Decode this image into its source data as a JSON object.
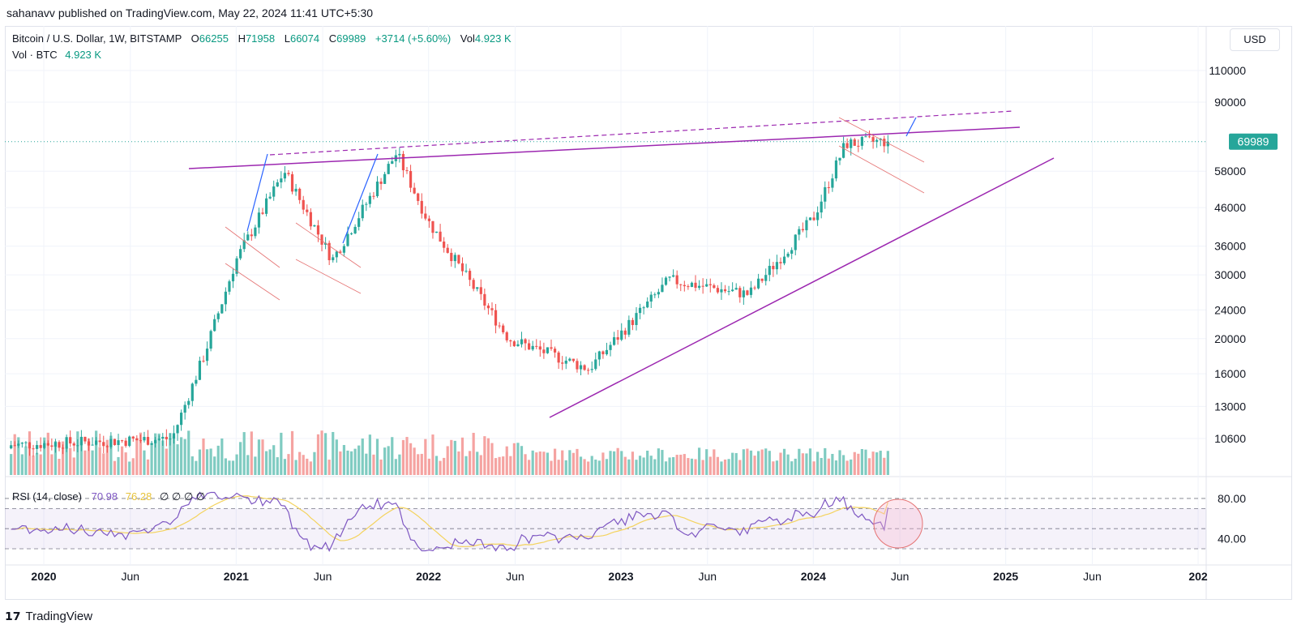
{
  "publisher_line": "sahanavv published on TradingView.com, May 22, 2024 11:41 UTC+5:30",
  "legend": {
    "symbol": "Bitcoin / U.S. Dollar, 1W, BITSTAMP",
    "o_label": "O",
    "o_value": "66255",
    "h_label": "H",
    "h_value": "71958",
    "l_label": "L",
    "l_value": "66074",
    "c_label": "C",
    "c_value": "69989",
    "change": "+3714 (+5.60%)",
    "vol_label": "Vol",
    "vol_value": "4.923 K",
    "vol_line_label": "Vol · BTC",
    "vol_line_value": "4.923 K"
  },
  "rsi_legend": {
    "label": "RSI (14, close)",
    "rsi": "70.98",
    "ma": "76.28",
    "icons": "∅ ∅ ∅ ∅"
  },
  "currency": "USD",
  "footer": {
    "brand": "TradingView"
  },
  "colors": {
    "up": "#26a69a",
    "down": "#ef5350",
    "vol_up": "#7fcbc1",
    "vol_down": "#f5a3a1",
    "trend": "#9c27b0",
    "rsi_line": "#7e57c2",
    "rsi_ma": "#f4d35e",
    "price_tag": "#26a69a"
  },
  "chart_data": {
    "type": "candlestick",
    "title": "Bitcoin / U.S. Dollar, 1W, BITSTAMP",
    "y_scale": "log",
    "y_ticks": [
      10600,
      13000,
      16000,
      20000,
      24000,
      30000,
      36000,
      46000,
      58000,
      90000,
      110000
    ],
    "last_price": 69989,
    "x_ticks": [
      {
        "label": "2020",
        "year": true
      },
      {
        "label": "Jun",
        "year": false
      },
      {
        "label": "2021",
        "year": true
      },
      {
        "label": "Jun",
        "year": false
      },
      {
        "label": "2022",
        "year": true
      },
      {
        "label": "Jun",
        "year": false
      },
      {
        "label": "2023",
        "year": true
      },
      {
        "label": "Jun",
        "year": false
      },
      {
        "label": "2024",
        "year": true
      },
      {
        "label": "Jun",
        "year": false
      },
      {
        "label": "2025",
        "year": true
      },
      {
        "label": "Jun",
        "year": false
      },
      {
        "label": "202",
        "year": true
      }
    ],
    "series_close": [
      {
        "date": "2020-09",
        "close": 10600
      },
      {
        "date": "2020-11",
        "close": 18000
      },
      {
        "date": "2021-01",
        "close": 33000
      },
      {
        "date": "2021-04",
        "close": 58000
      },
      {
        "date": "2021-07",
        "close": 33000
      },
      {
        "date": "2021-11",
        "close": 65000
      },
      {
        "date": "2022-01",
        "close": 42000
      },
      {
        "date": "2022-06",
        "close": 20000
      },
      {
        "date": "2022-11",
        "close": 16500
      },
      {
        "date": "2023-04",
        "close": 29000
      },
      {
        "date": "2023-09",
        "close": 26500
      },
      {
        "date": "2024-01",
        "close": 43000
      },
      {
        "date": "2024-03",
        "close": 69000
      },
      {
        "date": "2024-05",
        "close": 69989
      }
    ],
    "rsi": {
      "levels": [
        80,
        70,
        50,
        30
      ],
      "y_ticks": [
        80.0,
        40.0
      ],
      "y_tick_labels": [
        "80.00",
        "40.00"
      ],
      "last": 70.98,
      "ma_last": 76.28
    }
  }
}
